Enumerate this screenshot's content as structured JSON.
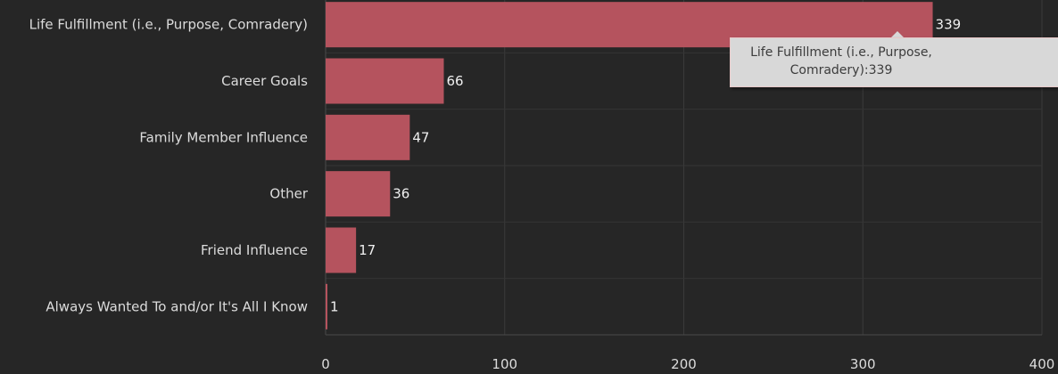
{
  "chart_data": {
    "type": "bar",
    "orientation": "horizontal",
    "categories": [
      "Life Fulfillment (i.e., Purpose, Comradery)",
      "Career Goals",
      "Family Member Influence",
      "Other",
      "Friend Influence",
      "Always Wanted To and/or It's All I Know"
    ],
    "values": [
      339,
      66,
      47,
      36,
      17,
      1
    ],
    "data_labels": [
      "339",
      "66",
      "47",
      "36",
      "17",
      "1"
    ],
    "x_ticks": [
      "0",
      "100",
      "200",
      "300",
      "400"
    ],
    "xlim": [
      0,
      400
    ],
    "grid": true,
    "bar_color": "#b5535e",
    "title": "",
    "xlabel": "",
    "ylabel": ""
  },
  "tooltip": {
    "text": "Life Fulfillment (i.e., Purpose, Comradery):339"
  }
}
